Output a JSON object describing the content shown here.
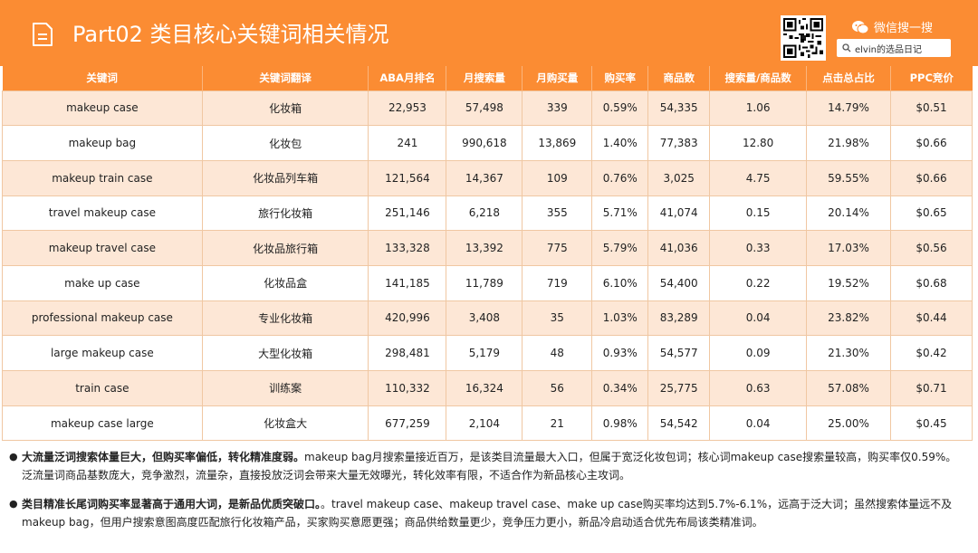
{
  "header": {
    "title": "Part02 类目核心关键词相关情况",
    "wechat_label": "微信搜一搜",
    "search_text": "elvin的选品日记",
    "colors": {
      "accent": "#fb8c33",
      "row_alt": "#fde7d6"
    }
  },
  "table": {
    "columns": [
      "关键词",
      "关键词翻译",
      "ABA月排名",
      "月搜索量",
      "月购买量",
      "购买率",
      "商品数",
      "搜索量/商品数",
      "点击总占比",
      "PPC竞价"
    ],
    "rows": [
      [
        "makeup case",
        "化妆箱",
        "22,953",
        "57,498",
        "339",
        "0.59%",
        "54,335",
        "1.06",
        "14.79%",
        "$0.51"
      ],
      [
        "makeup bag",
        "化妆包",
        "241",
        "990,618",
        "13,869",
        "1.40%",
        "77,383",
        "12.80",
        "21.98%",
        "$0.66"
      ],
      [
        "makeup train case",
        "化妆品列车箱",
        "121,564",
        "14,367",
        "109",
        "0.76%",
        "3,025",
        "4.75",
        "59.55%",
        "$0.66"
      ],
      [
        "travel makeup case",
        "旅行化妆箱",
        "251,146",
        "6,218",
        "355",
        "5.71%",
        "41,074",
        "0.15",
        "20.14%",
        "$0.65"
      ],
      [
        "makeup travel case",
        "化妆品旅行箱",
        "133,328",
        "13,392",
        "775",
        "5.79%",
        "41,036",
        "0.33",
        "17.03%",
        "$0.56"
      ],
      [
        "make up case",
        "化妆品盒",
        "141,185",
        "11,789",
        "719",
        "6.10%",
        "54,400",
        "0.22",
        "19.52%",
        "$0.68"
      ],
      [
        "professional makeup case",
        "专业化妆箱",
        "420,996",
        "3,408",
        "35",
        "1.03%",
        "83,289",
        "0.04",
        "23.82%",
        "$0.44"
      ],
      [
        "large makeup case",
        "大型化妆箱",
        "298,481",
        "5,179",
        "48",
        "0.93%",
        "54,577",
        "0.09",
        "21.30%",
        "$0.42"
      ],
      [
        "train case",
        "训练案",
        "110,332",
        "16,324",
        "56",
        "0.34%",
        "25,775",
        "0.63",
        "57.08%",
        "$0.71"
      ],
      [
        "makeup case large",
        "化妆盒大",
        "677,259",
        "2,104",
        "21",
        "0.98%",
        "54,542",
        "0.04",
        "25.00%",
        "$0.45"
      ]
    ]
  },
  "notes": [
    {
      "bold": "大流量泛词搜索体量巨大，但购买率偏低，转化精准度弱。",
      "text": "makeup bag月搜索量接近百万，是该类目流量最大入口，但属于宽泛化妆包词；核心词makeup case搜索量较高，购买率仅0.59%。泛流量词商品基数庞大，竞争激烈，流量杂，直接投放泛词会带来大量无效曝光，转化效率有限，不适合作为新品核心主攻词。"
    },
    {
      "bold": "类目精准长尾词购买率显著高于通用大词，是新品优质突破口。",
      "text": "。travel makeup case、makeup travel case、make up case购买率均达到5.7%-6.1%，远高于泛大词；虽然搜索体量远不及makeup bag，但用户搜索意图高度匹配旅行化妆箱产品，买家购买意愿更强；商品供给数量更少，竞争压力更小，新品冷启动适合优先布局该类精准词。"
    }
  ]
}
